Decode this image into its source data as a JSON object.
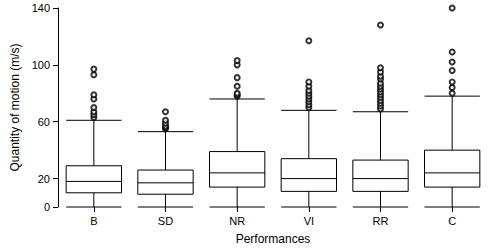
{
  "chart_data": {
    "type": "boxplot",
    "x_label": "Performances",
    "y_label": "Quantity of motion (m/s)",
    "categories": [
      "B",
      "SD",
      "NR",
      "VI",
      "RR",
      "C"
    ],
    "values": [
      [
        0,
        10,
        18,
        29,
        61
      ],
      [
        0,
        9,
        17,
        26,
        53
      ],
      [
        0,
        14,
        24,
        39,
        76
      ],
      [
        0,
        11,
        20,
        34,
        68
      ],
      [
        0,
        11,
        20,
        33,
        67
      ],
      [
        0,
        14,
        24,
        40,
        78
      ]
    ],
    "outliers": [
      [
        63,
        65,
        67,
        70,
        76,
        79,
        93,
        97
      ],
      [
        55,
        56,
        57,
        59,
        61,
        67
      ],
      [
        78,
        79,
        80,
        85,
        91,
        100,
        103
      ],
      [
        70,
        72,
        74,
        76,
        78,
        80,
        82,
        85,
        88,
        117
      ],
      [
        69,
        71,
        73,
        75,
        77,
        79,
        81,
        83,
        85,
        87,
        90,
        92,
        95,
        98,
        128
      ],
      [
        80,
        84,
        88,
        96,
        102,
        109,
        140
      ]
    ],
    "color": "#000000",
    "ylim": [
      0,
      140
    ],
    "yticks": [
      0,
      20,
      60,
      100,
      140
    ],
    "grid": false
  }
}
